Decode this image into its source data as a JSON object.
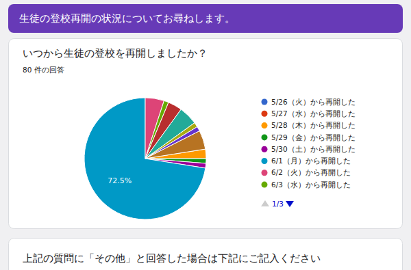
{
  "page": {
    "header": "生徒の登校再開の状況についてお尋ねします。",
    "next_question": "上記の質問に「その他」と回答した場合は下記にご記入ください",
    "legend_page": "1/3"
  },
  "chart_data": {
    "type": "pie",
    "title": "いつから生徒の登校を再開しましたか？",
    "subtitle": "80 件の回答",
    "categories": [
      "5/26（火）から再開した",
      "5/27（水）から再開した",
      "5/28（木）から再開した",
      "5/29（金）から再開した",
      "5/30（土）から再開した",
      "6/1（月）から再開した",
      "6/2（火）から再開した",
      "6/3（水）から再開した",
      null,
      null,
      null,
      null,
      null
    ],
    "values": [
      0,
      0,
      2.5,
      1.25,
      1.25,
      72.5,
      5,
      1.25,
      3.75,
      5,
      1.25,
      1.25,
      5
    ],
    "value_labels": [
      null,
      null,
      null,
      null,
      null,
      "72.5%",
      null,
      null,
      null,
      null,
      null,
      null,
      null
    ],
    "colors": [
      "#3366cc",
      "#dc3912",
      "#ff9900",
      "#109618",
      "#990099",
      "#0099c6",
      "#dd4477",
      "#66aa00",
      "#b82e2e",
      "#22aa99",
      "#aaaa11",
      "#6633cc",
      "#b77322"
    ],
    "data_labels": true,
    "legend": "right"
  }
}
